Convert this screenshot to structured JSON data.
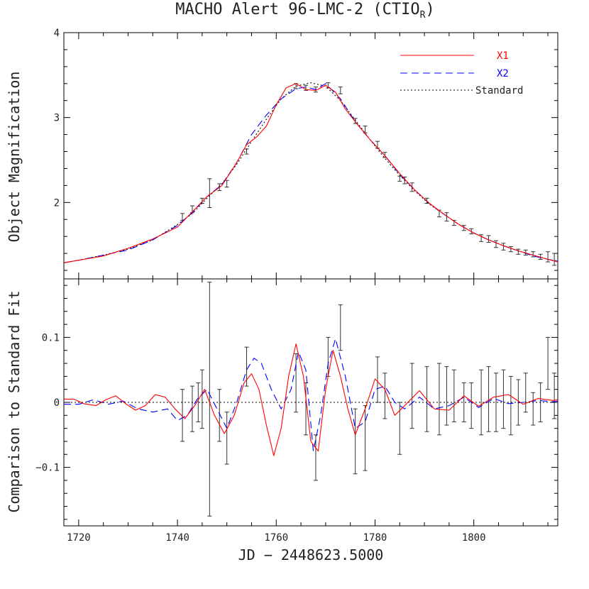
{
  "chart_data": {
    "type": "line",
    "title": "MACHO Alert 96-LMC-2 (CTIO",
    "title_subscript": "R",
    "title_close": ")",
    "xlabel": "JD − 2448623.5000",
    "colors": {
      "X1": "#ff0000",
      "X2": "#0000ff",
      "Standard": "#000000",
      "axes": "#000000"
    },
    "xlim": [
      1717,
      1817
    ],
    "xticks": [
      1720,
      1740,
      1760,
      1780,
      1800
    ],
    "xtick_labels": [
      "1720",
      "1740",
      "1760",
      "1780",
      "1800"
    ],
    "panels": [
      {
        "name": "top",
        "ylabel": "Object Magnification",
        "ylim": [
          1.1,
          4.0
        ],
        "yticks": [
          2,
          3,
          4
        ],
        "ytick_labels": [
          "2",
          "3",
          "4"
        ],
        "legend": [
          {
            "label": "X1",
            "style": "solid",
            "color": "#ff0000"
          },
          {
            "label": "X2",
            "style": "dashed",
            "color": "#0000ff"
          },
          {
            "label": "Standard",
            "style": "dotted",
            "color": "#000000"
          }
        ],
        "series": [
          {
            "name": "Standard",
            "style": "dotted",
            "color": "#000000",
            "x": [
              1717,
              1720,
              1725,
              1730,
              1735,
              1740,
              1743,
              1746,
              1749,
              1752,
              1755,
              1758,
              1761,
              1764,
              1767,
              1770,
              1773,
              1776,
              1779,
              1782,
              1785,
              1788,
              1791,
              1794,
              1797,
              1800,
              1803,
              1806,
              1809,
              1812,
              1815,
              1817
            ],
            "y": [
              1.29,
              1.32,
              1.38,
              1.45,
              1.56,
              1.74,
              1.87,
              2.05,
              2.22,
              2.45,
              2.72,
              2.98,
              3.22,
              3.37,
              3.41,
              3.37,
              3.2,
              2.97,
              2.74,
              2.52,
              2.32,
              2.14,
              1.98,
              1.86,
              1.74,
              1.64,
              1.56,
              1.49,
              1.43,
              1.38,
              1.33,
              1.31
            ]
          },
          {
            "name": "X2",
            "style": "dashed",
            "color": "#0000ff",
            "x": [
              1717,
              1720,
              1725,
              1730,
              1735,
              1740,
              1743,
              1746,
              1749,
              1752,
              1755,
              1758,
              1761,
              1764,
              1766,
              1768,
              1770,
              1773,
              1776,
              1779,
              1782,
              1785,
              1788,
              1791,
              1794,
              1797,
              1800,
              1803,
              1806,
              1809,
              1812,
              1815,
              1817
            ],
            "y": [
              1.29,
              1.32,
              1.38,
              1.44,
              1.56,
              1.73,
              1.88,
              2.07,
              2.21,
              2.47,
              2.8,
              3.03,
              3.22,
              3.34,
              3.36,
              3.33,
              3.4,
              3.22,
              2.95,
              2.74,
              2.55,
              2.33,
              2.15,
              1.99,
              1.86,
              1.74,
              1.64,
              1.56,
              1.49,
              1.43,
              1.37,
              1.33,
              1.31
            ]
          },
          {
            "name": "X1",
            "style": "solid",
            "color": "#ff0000",
            "x": [
              1717,
              1720,
              1725,
              1730,
              1735,
              1740,
              1743,
              1746,
              1749,
              1752,
              1754,
              1756,
              1758,
              1760,
              1762,
              1764,
              1766,
              1768,
              1770,
              1772,
              1774,
              1776,
              1779,
              1782,
              1785,
              1788,
              1791,
              1794,
              1797,
              1800,
              1803,
              1806,
              1809,
              1812,
              1815,
              1817
            ],
            "y": [
              1.29,
              1.32,
              1.37,
              1.46,
              1.57,
              1.71,
              1.89,
              2.07,
              2.2,
              2.47,
              2.68,
              2.77,
              2.9,
              3.15,
              3.35,
              3.4,
              3.33,
              3.32,
              3.38,
              3.3,
              3.1,
              2.95,
              2.74,
              2.55,
              2.34,
              2.15,
              1.99,
              1.86,
              1.74,
              1.64,
              1.56,
              1.49,
              1.43,
              1.38,
              1.33,
              1.3
            ]
          }
        ],
        "errorbars": {
          "x": [
            1741,
            1743,
            1745,
            1746.5,
            1748.5,
            1750,
            1754,
            1764,
            1766,
            1768,
            1770.5,
            1773,
            1776,
            1778,
            1780.5,
            1782,
            1785,
            1786,
            1787.5,
            1790.5,
            1793,
            1794.5,
            1796,
            1798,
            1799.5,
            1801.5,
            1803,
            1804.5,
            1806,
            1807.5,
            1809,
            1810.5,
            1812,
            1813.5,
            1815,
            1816.3
          ],
          "y": [
            1.83,
            1.92,
            2.02,
            2.11,
            2.18,
            2.22,
            2.6,
            3.37,
            3.35,
            3.33,
            3.38,
            3.32,
            2.96,
            2.86,
            2.68,
            2.56,
            2.28,
            2.26,
            2.18,
            2.02,
            1.87,
            1.83,
            1.76,
            1.7,
            1.66,
            1.58,
            1.57,
            1.51,
            1.48,
            1.45,
            1.42,
            1.41,
            1.39,
            1.36,
            1.36,
            1.33
          ],
          "err": [
            0.04,
            0.04,
            0.03,
            0.17,
            0.04,
            0.04,
            0.03,
            0.03,
            0.03,
            0.03,
            0.03,
            0.04,
            0.03,
            0.04,
            0.04,
            0.03,
            0.03,
            0.04,
            0.05,
            0.03,
            0.04,
            0.05,
            0.03,
            0.03,
            0.03,
            0.04,
            0.04,
            0.04,
            0.04,
            0.03,
            0.03,
            0.03,
            0.03,
            0.03,
            0.06,
            0.07
          ]
        }
      },
      {
        "name": "bottom",
        "ylabel": "Comparison to Standard Fit",
        "ylim": [
          -0.19,
          0.19
        ],
        "yticks": [
          -0.1,
          0,
          0.1
        ],
        "ytick_labels": [
          "−0.1",
          "0",
          "0.1"
        ],
        "series": [
          {
            "name": "Standard",
            "style": "dotted",
            "color": "#000000",
            "x": [
              1717,
              1817
            ],
            "y": [
              0,
              0
            ]
          },
          {
            "name": "X2",
            "style": "dashed",
            "color": "#0000ff",
            "x": [
              1717,
              1720,
              1723,
              1726,
              1729,
              1732,
              1735,
              1738,
              1740,
              1742,
              1744,
              1746,
              1748,
              1750,
              1752,
              1754,
              1755.5,
              1757,
              1759,
              1761,
              1763,
              1764.5,
              1766,
              1767.5,
              1769,
              1770.5,
              1772,
              1774,
              1776,
              1778,
              1780,
              1782,
              1784,
              1786,
              1789,
              1792,
              1795,
              1798,
              1801,
              1804,
              1807,
              1810,
              1813,
              1816,
              1817
            ],
            "y": [
              -0.003,
              -0.003,
              0.004,
              -0.003,
              0.002,
              -0.01,
              -0.015,
              -0.01,
              -0.028,
              -0.02,
              0.005,
              0.02,
              -0.01,
              -0.04,
              0.0,
              0.05,
              0.068,
              0.06,
              0.02,
              -0.01,
              0.02,
              0.078,
              0.05,
              -0.075,
              -0.02,
              0.06,
              0.098,
              0.04,
              -0.04,
              -0.03,
              0.02,
              0.025,
              0.0,
              -0.01,
              0.008,
              -0.01,
              -0.005,
              0.008,
              -0.008,
              0.006,
              -0.002,
              0.0,
              0.003,
              0.001,
              0.002
            ]
          },
          {
            "name": "X1",
            "style": "solid",
            "color": "#ff0000",
            "x": [
              1717,
              1719,
              1721,
              1723.5,
              1725.5,
              1727.5,
              1729.5,
              1731.5,
              1733.5,
              1735.5,
              1737.5,
              1739.5,
              1741.5,
              1743.5,
              1745.5,
              1747.5,
              1749.5,
              1751.5,
              1753.5,
              1755,
              1756.5,
              1758,
              1759.5,
              1761,
              1762.5,
              1764,
              1765.5,
              1767,
              1768.5,
              1770,
              1771.5,
              1773,
              1774.5,
              1776,
              1778,
              1780,
              1782,
              1784,
              1786,
              1789,
              1792,
              1795,
              1798,
              1801,
              1804,
              1807,
              1810,
              1813,
              1816,
              1817
            ],
            "y": [
              0.005,
              0.005,
              -0.002,
              -0.005,
              0.004,
              0.01,
              -0.002,
              -0.012,
              -0.005,
              0.012,
              0.008,
              -0.01,
              -0.025,
              -0.005,
              0.02,
              -0.02,
              -0.048,
              -0.02,
              0.03,
              0.044,
              0.02,
              -0.035,
              -0.082,
              -0.04,
              0.04,
              0.09,
              0.04,
              -0.06,
              -0.075,
              0.02,
              0.08,
              0.04,
              -0.01,
              -0.05,
              -0.01,
              0.036,
              0.02,
              -0.02,
              -0.005,
              0.018,
              -0.01,
              -0.012,
              0.01,
              -0.006,
              0.008,
              0.012,
              -0.003,
              0.006,
              0.003,
              0.004
            ]
          }
        ],
        "errorbars": {
          "x": [
            1741,
            1743,
            1744.2,
            1745,
            1746.5,
            1748.5,
            1750,
            1754,
            1764,
            1766,
            1768,
            1770.5,
            1773,
            1776,
            1778,
            1780.5,
            1782,
            1785,
            1787.5,
            1790.5,
            1793,
            1794.5,
            1796,
            1798,
            1799.5,
            1801.5,
            1803,
            1804.5,
            1806,
            1807.5,
            1809,
            1810.5,
            1812,
            1813.5,
            1815,
            1816.3
          ],
          "y": [
            -0.02,
            -0.01,
            0.0,
            0.005,
            0.005,
            -0.02,
            -0.055,
            0.055,
            0.03,
            -0.01,
            -0.085,
            0.07,
            0.115,
            -0.06,
            -0.055,
            0.035,
            0.01,
            -0.04,
            0.01,
            0.005,
            0.005,
            0.01,
            0.01,
            0.0,
            -0.005,
            0.0,
            0.005,
            0.0,
            0.005,
            -0.005,
            0.0,
            0.015,
            -0.01,
            0.0,
            0.06,
            0.01
          ],
          "err": [
            0.04,
            0.035,
            0.03,
            0.045,
            0.18,
            0.04,
            0.04,
            0.03,
            0.045,
            0.04,
            0.035,
            0.03,
            0.035,
            0.05,
            0.05,
            0.035,
            0.035,
            0.04,
            0.05,
            0.05,
            0.055,
            0.045,
            0.04,
            0.03,
            0.035,
            0.05,
            0.05,
            0.045,
            0.045,
            0.045,
            0.035,
            0.03,
            0.025,
            0.03,
            0.04,
            0.035
          ]
        }
      }
    ]
  }
}
